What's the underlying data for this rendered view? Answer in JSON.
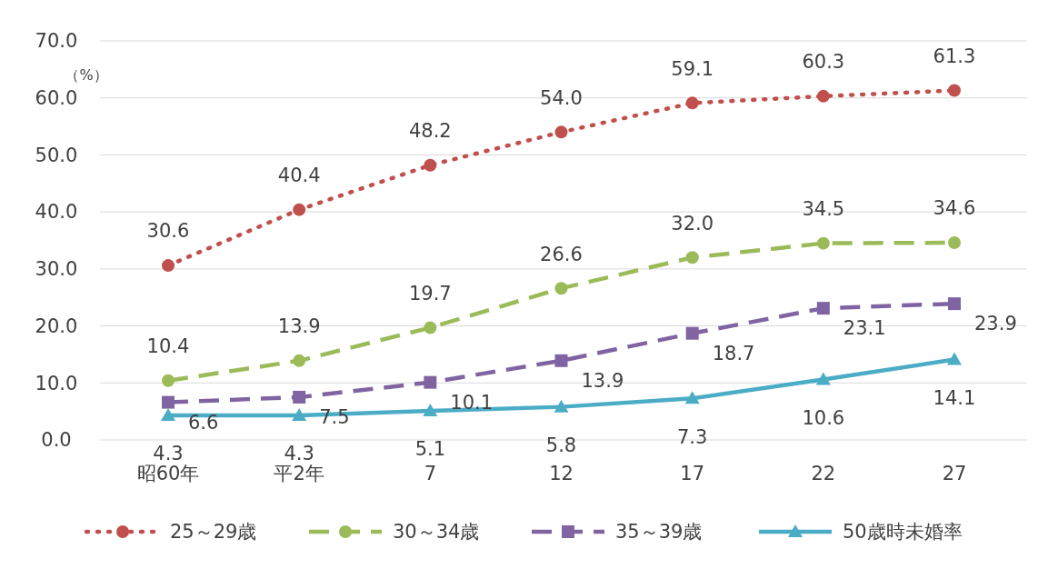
{
  "chart_data": {
    "type": "line",
    "ylabel": "（%）",
    "categories": [
      "昭60年",
      "平2年",
      "7",
      "12",
      "17",
      "22",
      "27"
    ],
    "ylim": [
      0,
      70
    ],
    "yticks": [
      {
        "value": 0,
        "label": "0.0"
      },
      {
        "value": 10,
        "label": "10.0"
      },
      {
        "value": 20,
        "label": "20.0"
      },
      {
        "value": 30,
        "label": "30.0"
      },
      {
        "value": 40,
        "label": "40.0"
      },
      {
        "value": 50,
        "label": "50.0"
      },
      {
        "value": 60,
        "label": "60.0"
      },
      {
        "value": 70,
        "label": "70.0"
      }
    ],
    "grid": "y",
    "legend": "bottom",
    "series": [
      {
        "name": "25～29歳",
        "color": "#c0504d",
        "marker": "circle",
        "line_style": "dotted",
        "values": [
          30.6,
          40.4,
          48.2,
          54.0,
          59.1,
          60.3,
          61.3
        ],
        "value_labels": [
          "30.6",
          "40.4",
          "48.2",
          "54.0",
          "59.1",
          "60.3",
          "61.3"
        ]
      },
      {
        "name": "30～34歳",
        "color": "#9bbb59",
        "marker": "circle",
        "line_style": "dashed",
        "values": [
          10.4,
          13.9,
          19.7,
          26.6,
          32.0,
          34.5,
          34.6
        ],
        "value_labels": [
          "10.4",
          "13.9",
          "19.7",
          "26.6",
          "32.0",
          "34.5",
          "34.6"
        ]
      },
      {
        "name": "35～39歳",
        "color": "#8064a2",
        "marker": "square",
        "line_style": "dashed",
        "values": [
          6.6,
          7.5,
          10.1,
          13.9,
          18.7,
          23.1,
          23.9
        ],
        "value_labels": [
          "6.6",
          "7.5",
          "10.1",
          "13.9",
          "18.7",
          "23.1",
          "23.9"
        ]
      },
      {
        "name": "50歳時未婚率",
        "color": "#4bacc6",
        "marker": "triangle",
        "line_style": "solid",
        "values": [
          4.3,
          4.3,
          5.1,
          5.8,
          7.3,
          10.6,
          14.1
        ],
        "value_labels": [
          "4.3",
          "4.3",
          "5.1",
          "5.8",
          "7.3",
          "10.6",
          "14.1"
        ]
      }
    ]
  }
}
